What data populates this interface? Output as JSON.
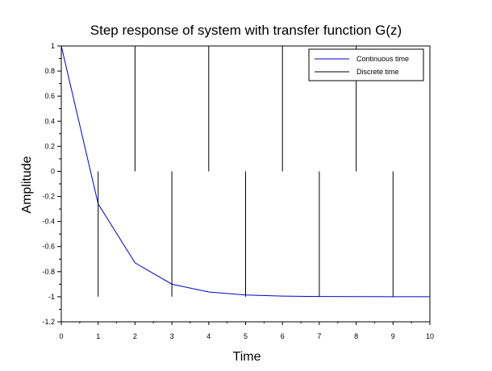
{
  "chart_data": {
    "type": "line",
    "title": "Step response of system with transfer function G(z)",
    "xlabel": "Time",
    "ylabel": "Amplitude",
    "xlim": [
      0,
      10
    ],
    "ylim": [
      -1.2,
      1
    ],
    "x_ticks": [
      "0",
      "1",
      "2",
      "3",
      "4",
      "5",
      "6",
      "7",
      "8",
      "9",
      "10"
    ],
    "y_ticks": [
      "1",
      "0.8",
      "0.6",
      "0.4",
      "0.2",
      "0",
      "-0.2",
      "-0.4",
      "-0.6",
      "-0.8",
      "-1",
      "-1.2"
    ],
    "grid": false,
    "legend_position": "top-right",
    "series": [
      {
        "name": "Continuous time",
        "color": "#0000cc",
        "style": "line",
        "x": [
          0,
          1,
          2,
          3,
          4,
          5,
          6,
          7,
          8,
          9,
          10
        ],
        "values": [
          1,
          -0.26,
          -0.73,
          -0.9,
          -0.962,
          -0.986,
          -0.995,
          -0.998,
          -0.999,
          -1.0,
          -1.0
        ]
      },
      {
        "name": "Discrete time",
        "color": "#000000",
        "style": "bars",
        "x": [
          1,
          2,
          3,
          4,
          5,
          6,
          7,
          8,
          9,
          10
        ],
        "lower": [
          -1,
          0,
          -1,
          0,
          -1,
          0,
          -1,
          0,
          -1,
          0
        ],
        "upper": [
          0,
          1,
          0,
          1,
          0,
          1,
          0,
          1,
          0,
          1
        ]
      }
    ]
  }
}
